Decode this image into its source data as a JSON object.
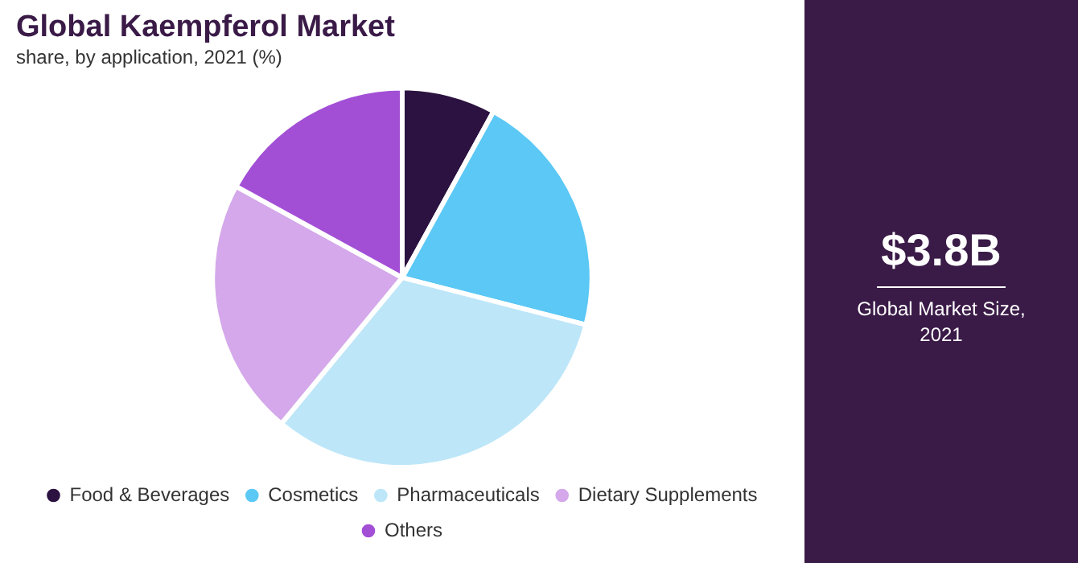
{
  "chart_data": {
    "type": "pie",
    "title": "Global Kaempferol Market",
    "subtitle": "share, by application, 2021 (%)",
    "categories": [
      "Food & Beverages",
      "Cosmetics",
      "Pharmaceuticals",
      "Dietary Supplements",
      "Others"
    ],
    "values": [
      8,
      21,
      32,
      22,
      17
    ],
    "colors": [
      "#2b1240",
      "#5bc8f5",
      "#bde6f8",
      "#d4a8ea",
      "#a24fd6"
    ],
    "legend": "bottom",
    "annotations": [
      "$3.8B",
      "Global Market Size, 2021"
    ]
  }
}
